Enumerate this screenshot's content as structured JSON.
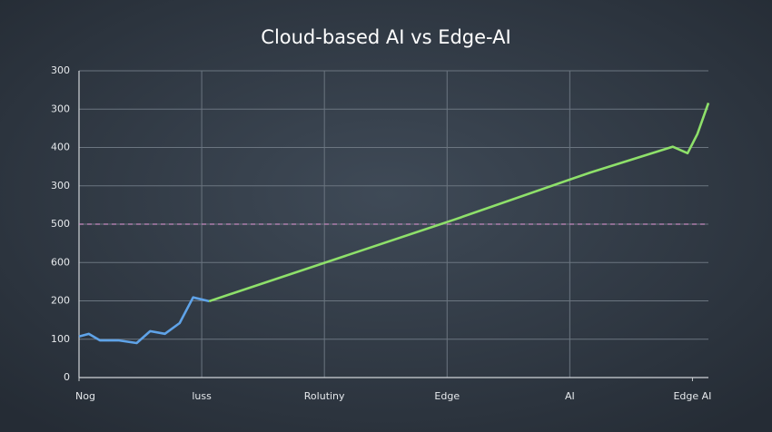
{
  "chart_data": {
    "type": "line",
    "title": "Cloud-based AI vs Edge-AI",
    "xlim": [
      0,
      5.13
    ],
    "xticks": [
      {
        "value": 0,
        "label": "Nog"
      },
      {
        "value": 1,
        "label": "luss"
      },
      {
        "value": 2,
        "label": "Rolutiny"
      },
      {
        "value": 3,
        "label": "Edge"
      },
      {
        "value": 4,
        "label": "AI"
      },
      {
        "value": 5,
        "label": "Edge AI"
      }
    ],
    "ylim": [
      0,
      800
    ],
    "yticks": [
      0,
      100,
      200,
      {
        "value": 300,
        "label": "600"
      },
      {
        "value": 400,
        "label": "500"
      },
      {
        "value": 500,
        "label": "300"
      },
      {
        "value": 600,
        "label": "400"
      },
      {
        "value": 700,
        "label": "300"
      },
      {
        "value": 800,
        "label": "300"
      }
    ],
    "grid": true,
    "reference_line": {
      "value": 400,
      "color": "#c58ac0"
    },
    "series": [
      {
        "color": "#5fa3e8",
        "x": [
          0,
          0.08,
          0.17,
          0.32,
          0.47,
          0.58,
          0.7,
          0.82,
          0.93,
          1.06
        ],
        "values": [
          107,
          114,
          97,
          97,
          90,
          121,
          114,
          142,
          209,
          199
        ]
      },
      {
        "color": "#8ee06a",
        "x": [
          1.06,
          3.06,
          4.17,
          4.84,
          4.96,
          5.04,
          5.13
        ],
        "values": [
          199,
          412,
          535,
          602,
          585,
          635,
          716
        ]
      }
    ]
  }
}
